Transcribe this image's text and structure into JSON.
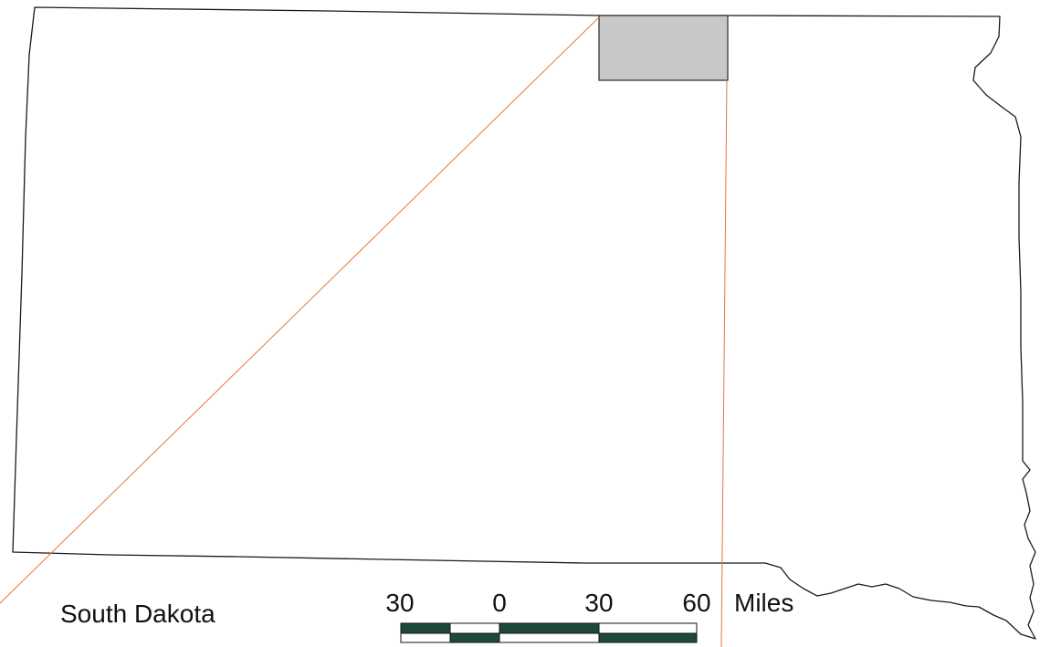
{
  "map": {
    "state_name": "South Dakota",
    "highlighted_county_fill": "#c8c8c8",
    "leader_line_color": "#e07a3a",
    "outline_color": "#1a1a1a"
  },
  "scale_bar": {
    "ticks": [
      "30",
      "0",
      "30",
      "60"
    ],
    "unit": "Miles",
    "dark_color": "#1f4a3a"
  }
}
